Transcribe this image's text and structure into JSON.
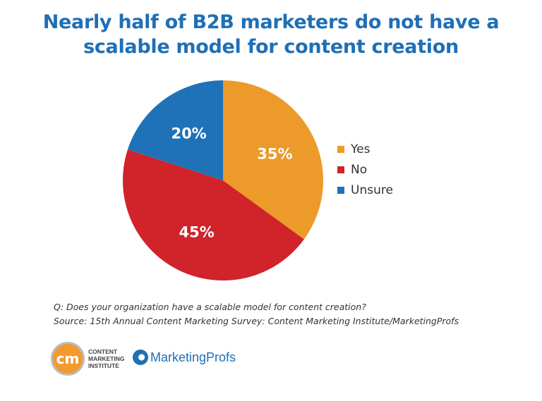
{
  "chart_data": {
    "type": "pie",
    "title": "Nearly half of B2B marketers do not have a scalable model for content creation",
    "title_lines": [
      "Nearly half of B2B marketers do not have a",
      "scalable model for content creation"
    ],
    "slices": [
      {
        "label": "Yes",
        "value": 35,
        "display": "35%",
        "color": "#ec9a29"
      },
      {
        "label": "No",
        "value": 45,
        "display": "45%",
        "color": "#d0232a"
      },
      {
        "label": "Unsure",
        "value": 20,
        "display": "20%",
        "color": "#1f72b8"
      }
    ],
    "legend_position": "right"
  },
  "notes": {
    "question": "Q: Does your organization have a scalable model for content creation?",
    "source": "Source: 15th Annual Content Marketing Survey: Content Marketing Institute/MarketingProfs"
  },
  "logos": {
    "cmi_mark": "cm",
    "cmi_lines": [
      "CONTENT",
      "MARKETING",
      "INSTITUTE"
    ],
    "marketingprofs": "MarketingProfs"
  }
}
